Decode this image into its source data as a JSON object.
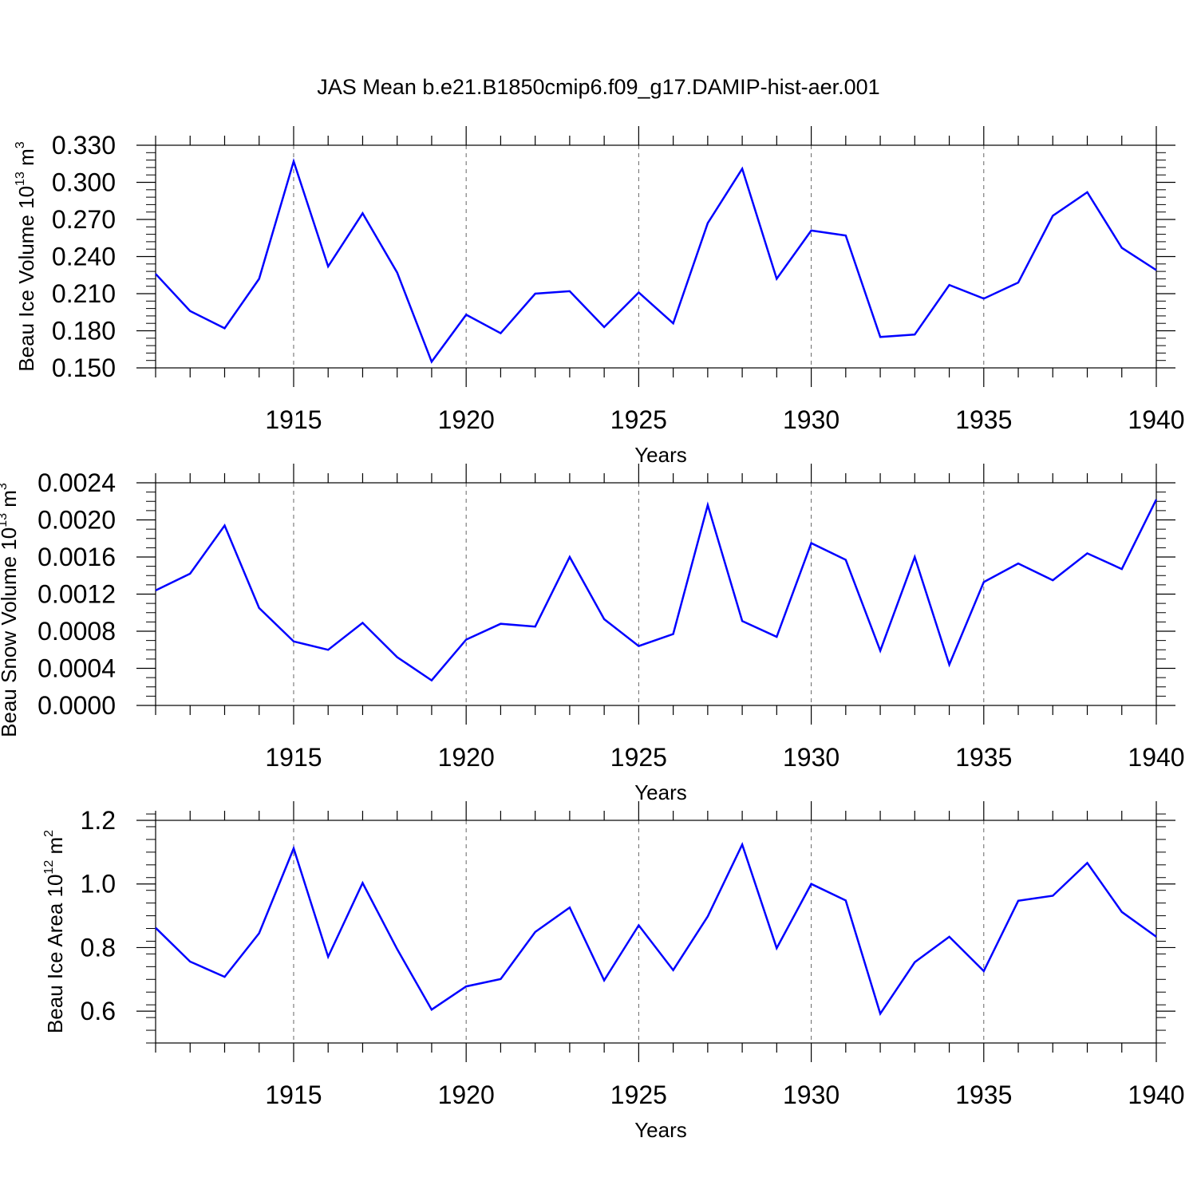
{
  "chart_data": {
    "title": "JAS Mean b.e21.B1850cmip6.f09_g17.DAMIP-hist-aer.001",
    "type": "line",
    "line_color": "#0000ff",
    "grid_color": "#666666",
    "years": [
      1911,
      1912,
      1913,
      1914,
      1915,
      1916,
      1917,
      1918,
      1919,
      1920,
      1921,
      1922,
      1923,
      1924,
      1925,
      1926,
      1927,
      1928,
      1929,
      1930,
      1931,
      1932,
      1933,
      1934,
      1935,
      1936,
      1937,
      1938,
      1939,
      1940
    ],
    "xlim": [
      1911,
      1940
    ],
    "xticks": [
      1915,
      1920,
      1925,
      1930,
      1935,
      1940
    ],
    "xtick_labels": [
      "1915",
      "1920",
      "1925",
      "1930",
      "1935",
      "1940"
    ],
    "xlabel": "Years",
    "panels": [
      {
        "name": "ice-volume",
        "ylabel_text": "Beau Ice Volume 10",
        "ylabel_sup": "13",
        "ylabel_unit": " m",
        "ylabel_unit_sup": "3",
        "ylim": [
          0.15,
          0.33
        ],
        "yticks": [
          0.15,
          0.18,
          0.21,
          0.24,
          0.27,
          0.3,
          0.33
        ],
        "ytick_labels": [
          "0.150",
          "0.180",
          "0.210",
          "0.240",
          "0.270",
          "0.300",
          "0.330"
        ],
        "ymin_step": 0.006,
        "values": [
          0.226,
          0.196,
          0.182,
          0.222,
          0.317,
          0.232,
          0.275,
          0.227,
          0.155,
          0.193,
          0.178,
          0.21,
          0.212,
          0.183,
          0.211,
          0.186,
          0.267,
          0.311,
          0.222,
          0.261,
          0.257,
          0.175,
          0.177,
          0.217,
          0.206,
          0.219,
          0.273,
          0.292,
          0.247,
          0.229
        ]
      },
      {
        "name": "snow-volume",
        "ylabel_text": "Beau Snow Volume 10",
        "ylabel_sup": "13",
        "ylabel_unit": " m",
        "ylabel_unit_sup": "3",
        "ylim": [
          0.0,
          0.0024
        ],
        "yticks": [
          0.0,
          0.0004,
          0.0008,
          0.0012,
          0.0016,
          0.002,
          0.0024
        ],
        "ytick_labels": [
          "0.0000",
          "0.0004",
          "0.0008",
          "0.0012",
          "0.0016",
          "0.0020",
          "0.0024"
        ],
        "ymin_step": 0.0001,
        "values": [
          0.00124,
          0.00142,
          0.00194,
          0.00105,
          0.00069,
          0.0006,
          0.00089,
          0.00052,
          0.00027,
          0.00071,
          0.00088,
          0.00085,
          0.0016,
          0.00093,
          0.00064,
          0.00077,
          0.00216,
          0.00091,
          0.00074,
          0.00175,
          0.00157,
          0.00059,
          0.0016,
          0.00044,
          0.00133,
          0.00153,
          0.00135,
          0.00164,
          0.00147,
          0.00222
        ]
      },
      {
        "name": "ice-area",
        "ylabel_text": "Beau Ice Area 10",
        "ylabel_sup": "12",
        "ylabel_unit": " m",
        "ylabel_unit_sup": "2",
        "ylim": [
          0.5,
          1.2
        ],
        "yticks": [
          0.6,
          0.8,
          1.0,
          1.2
        ],
        "ytick_labels": [
          "0.6",
          "0.8",
          "1.0",
          "1.2"
        ],
        "ymin_step": 0.04,
        "values": [
          0.862,
          0.756,
          0.708,
          0.845,
          1.112,
          0.771,
          1.003,
          0.795,
          0.605,
          0.678,
          0.701,
          0.849,
          0.926,
          0.697,
          0.87,
          0.729,
          0.898,
          1.124,
          0.798,
          1.0,
          0.948,
          0.592,
          0.754,
          0.834,
          0.726,
          0.947,
          0.963,
          1.066,
          0.912,
          0.834
        ]
      }
    ]
  }
}
